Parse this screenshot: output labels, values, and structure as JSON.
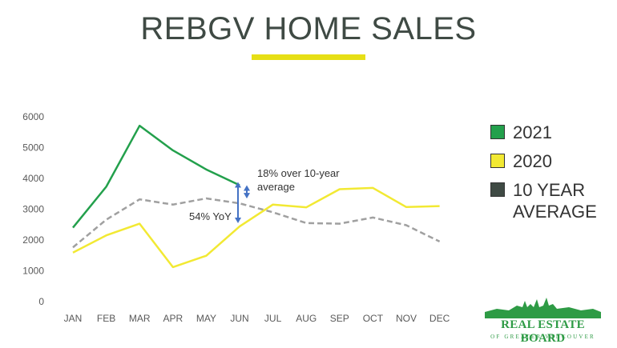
{
  "title": "REBGV HOME SALES",
  "chart_data": {
    "type": "line",
    "categories": [
      "JAN",
      "FEB",
      "MAR",
      "APR",
      "MAY",
      "JUN",
      "JUL",
      "AUG",
      "SEP",
      "OCT",
      "NOV",
      "DEC"
    ],
    "y_ticks": [
      "0",
      "1000",
      "2000",
      "3000",
      "4000",
      "5000",
      "6000"
    ],
    "ylim": [
      0,
      6000
    ],
    "grid": false,
    "legend_position": "right",
    "series": [
      {
        "name": "2021",
        "color": "#23a04c",
        "dashed": false,
        "values": [
          2400,
          3730,
          5710,
          4910,
          4290,
          3780,
          null,
          null,
          null,
          null,
          null,
          null
        ]
      },
      {
        "name": "2020",
        "color": "#f2e933",
        "dashed": false,
        "values": [
          1590,
          2150,
          2530,
          1120,
          1490,
          2440,
          3150,
          3060,
          3650,
          3690,
          3070,
          3100
        ]
      },
      {
        "name": "10 YEAR AVERAGE",
        "color": "#a0a0a0",
        "dashed": true,
        "values": [
          1760,
          2660,
          3320,
          3150,
          3350,
          3190,
          2900,
          2550,
          2530,
          2730,
          2480,
          1950
        ]
      }
    ],
    "annotations": [
      {
        "text_lines": [
          "18% over 10-year",
          "average"
        ],
        "color": "#333333"
      },
      {
        "text_lines": [
          "54% YoY"
        ],
        "color": "#333333"
      }
    ]
  },
  "legend": {
    "items": [
      {
        "label": "2021",
        "color": "#23a04c"
      },
      {
        "label": "2020",
        "color": "#f2e933"
      },
      {
        "label": "10 YEAR AVERAGE",
        "color": "#3f4a44"
      }
    ]
  },
  "logo": {
    "main": "REAL ESTATE BOARD",
    "sub": "OF GREATER VANCOUVER"
  }
}
